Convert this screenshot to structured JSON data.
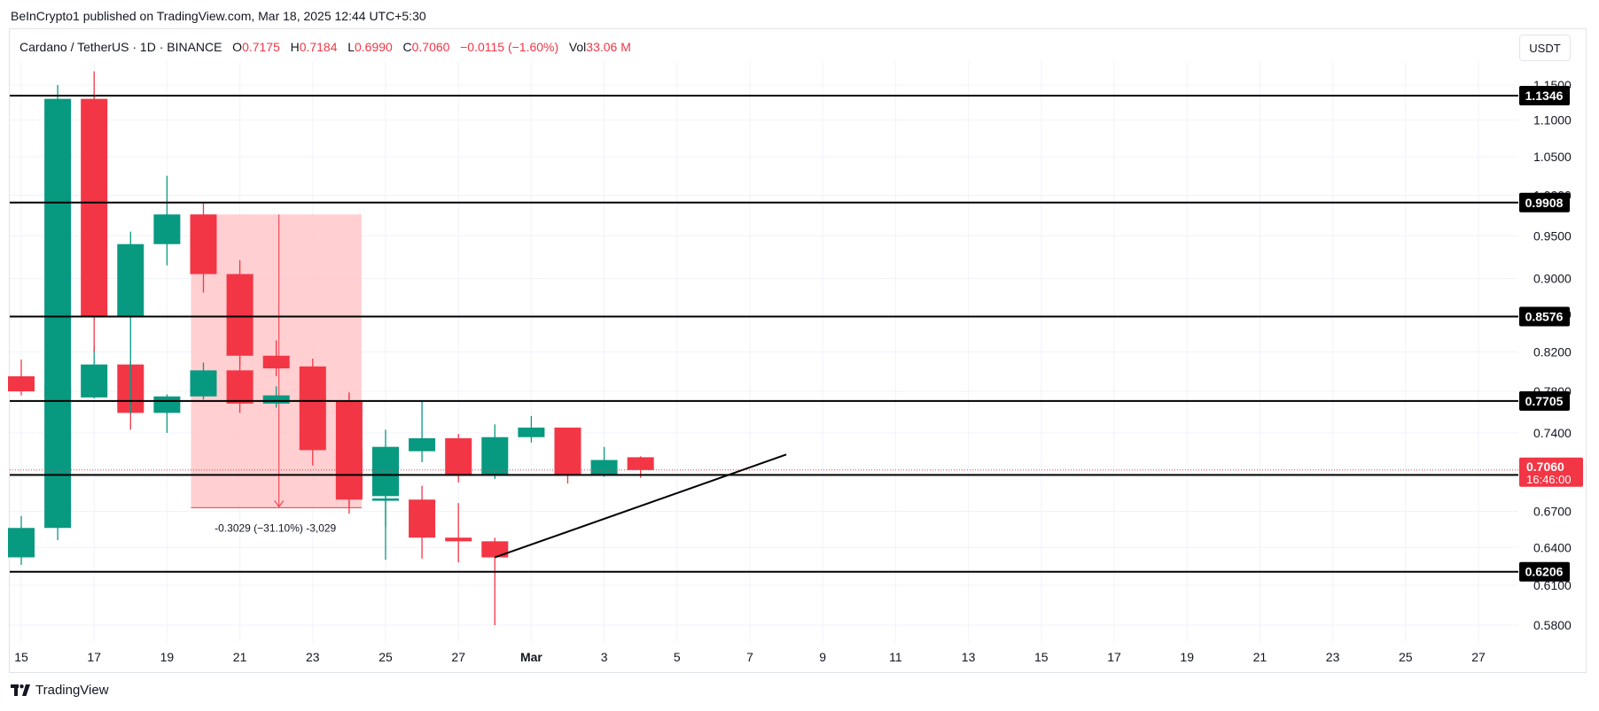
{
  "header": {
    "publisher": "BeInCrypto1 published on TradingView.com, Mar 18, 2025 12:44 UTC+5:30"
  },
  "symbol": {
    "name": "Cardano / TetherUS · 1D · BINANCE",
    "o_label": "O",
    "o": "0.7175",
    "h_label": "H",
    "h": "0.7184",
    "l_label": "L",
    "l": "0.6990",
    "c_label": "C",
    "c": "0.7060",
    "change": "−0.0115 (−1.60%)",
    "vol_label": "Vol",
    "vol": "33.06 M"
  },
  "currency_button": "USDT",
  "footer": {
    "brand": "TradingView"
  },
  "colors": {
    "up": "#089981",
    "down": "#f23645",
    "zone": "#ffc7c9",
    "level": "#000000"
  },
  "chart_data": {
    "type": "candlestick",
    "y_axis": {
      "scale": "log",
      "ticks": [
        "1.1500",
        "1.1000",
        "1.0500",
        "1.0000",
        "0.9500",
        "0.9000",
        "0.8600",
        "0.8200",
        "0.7800",
        "0.7400",
        "0.7000",
        "0.6700",
        "0.6400",
        "0.6100",
        "0.5800"
      ]
    },
    "x_axis": {
      "ticks": [
        "15",
        "17",
        "19",
        "21",
        "23",
        "25",
        "27",
        "Mar",
        "3",
        "5",
        "7",
        "9",
        "11",
        "13",
        "15",
        "17",
        "19",
        "21",
        "23",
        "25",
        "27"
      ]
    },
    "candles": [
      {
        "date": "Feb 15",
        "o": 0.795,
        "h": 0.812,
        "l": 0.776,
        "c": 0.78
      },
      {
        "date": "Feb 16",
        "o": 0.784,
        "h": 0.788,
        "l": 0.766,
        "c": 0.775
      },
      {
        "date": "Feb 17",
        "o": 0.774,
        "h": 0.826,
        "l": 0.773,
        "c": 0.807
      },
      {
        "date": "Feb 18",
        "o": 0.807,
        "h": 0.811,
        "l": 0.743,
        "c": 0.759
      },
      {
        "date": "Feb 19",
        "o": 0.759,
        "h": 0.777,
        "l": 0.74,
        "c": 0.775
      },
      {
        "date": "Feb 20",
        "o": 0.775,
        "h": 0.809,
        "l": 0.772,
        "c": 0.801
      },
      {
        "date": "Feb 21",
        "o": 0.801,
        "h": 0.815,
        "l": 0.759,
        "c": 0.768
      },
      {
        "date": "Feb 22",
        "o": 0.768,
        "h": 0.785,
        "l": 0.764,
        "c": 0.776
      },
      {
        "date": "Feb 23",
        "o": 0.774,
        "h": 0.786,
        "l": 0.765,
        "c": 0.771
      },
      {
        "date": "Feb 24",
        "o": 0.771,
        "h": 0.777,
        "l": 0.672,
        "c": 0.68
      },
      {
        "date": "Feb 25",
        "o": 0.679,
        "h": 0.701,
        "l": 0.63,
        "c": 0.681
      },
      {
        "date": "Feb 26",
        "o": 0.68,
        "h": 0.692,
        "l": 0.631,
        "c": 0.648
      },
      {
        "date": "Feb 27",
        "o": 0.648,
        "h": 0.677,
        "l": 0.628,
        "c": 0.645
      },
      {
        "date": "Feb 28",
        "o": 0.645,
        "h": 0.648,
        "l": 0.58,
        "c": 0.632
      },
      {
        "date": "Mar 1",
        "o": 0.632,
        "h": 0.666,
        "l": 0.626,
        "c": 0.656
      },
      {
        "date": "Mar 2",
        "o": 0.656,
        "h": 1.15,
        "l": 0.646,
        "c": 1.13
      },
      {
        "date": "Mar 3",
        "o": 1.13,
        "h": 1.17,
        "l": 0.82,
        "c": 0.858
      },
      {
        "date": "Mar 4",
        "o": 0.858,
        "h": 0.955,
        "l": 0.758,
        "c": 0.94
      },
      {
        "date": "Mar 5",
        "o": 0.94,
        "h": 1.025,
        "l": 0.915,
        "c": 0.976
      },
      {
        "date": "Mar 6",
        "o": 0.976,
        "h": 0.991,
        "l": 0.884,
        "c": 0.905
      },
      {
        "date": "Mar 7",
        "o": 0.905,
        "h": 0.921,
        "l": 0.806,
        "c": 0.816
      },
      {
        "date": "Mar 8",
        "o": 0.816,
        "h": 0.832,
        "l": 0.795,
        "c": 0.803
      },
      {
        "date": "Mar 9",
        "o": 0.805,
        "h": 0.813,
        "l": 0.71,
        "c": 0.724
      },
      {
        "date": "Mar 10",
        "o": 0.724,
        "h": 0.779,
        "l": 0.668,
        "c": 0.682
      },
      {
        "date": "Mar 11",
        "o": 0.683,
        "h": 0.743,
        "l": 0.657,
        "c": 0.727
      },
      {
        "date": "Mar 12",
        "o": 0.723,
        "h": 0.77,
        "l": 0.713,
        "c": 0.735
      },
      {
        "date": "Mar 13",
        "o": 0.735,
        "h": 0.739,
        "l": 0.695,
        "c": 0.701
      },
      {
        "date": "Mar 14",
        "o": 0.701,
        "h": 0.748,
        "l": 0.698,
        "c": 0.736
      },
      {
        "date": "Mar 15",
        "o": 0.736,
        "h": 0.756,
        "l": 0.731,
        "c": 0.745
      },
      {
        "date": "Mar 16",
        "o": 0.745,
        "h": 0.745,
        "l": 0.694,
        "c": 0.702
      },
      {
        "date": "Mar 17",
        "o": 0.702,
        "h": 0.727,
        "l": 0.7,
        "c": 0.715
      },
      {
        "date": "Mar 18",
        "o": 0.7175,
        "h": 0.7184,
        "l": 0.699,
        "c": 0.706
      }
    ],
    "levels": [
      "1.1346",
      "0.9908",
      "0.8576",
      "0.7705",
      "0.7016",
      "0.6206"
    ],
    "current_price": "0.7060",
    "countdown": "16:46:00",
    "measure": {
      "label": "-0.3029 (−31.10%) -3,029",
      "from_date": "Mar 6",
      "to_date": "Mar 10",
      "top": 0.976,
      "bottom": 0.6731
    },
    "trendline": {
      "from_date": "Feb 28",
      "from": 0.632,
      "to_date": "Mar 22",
      "to": 0.72
    }
  }
}
